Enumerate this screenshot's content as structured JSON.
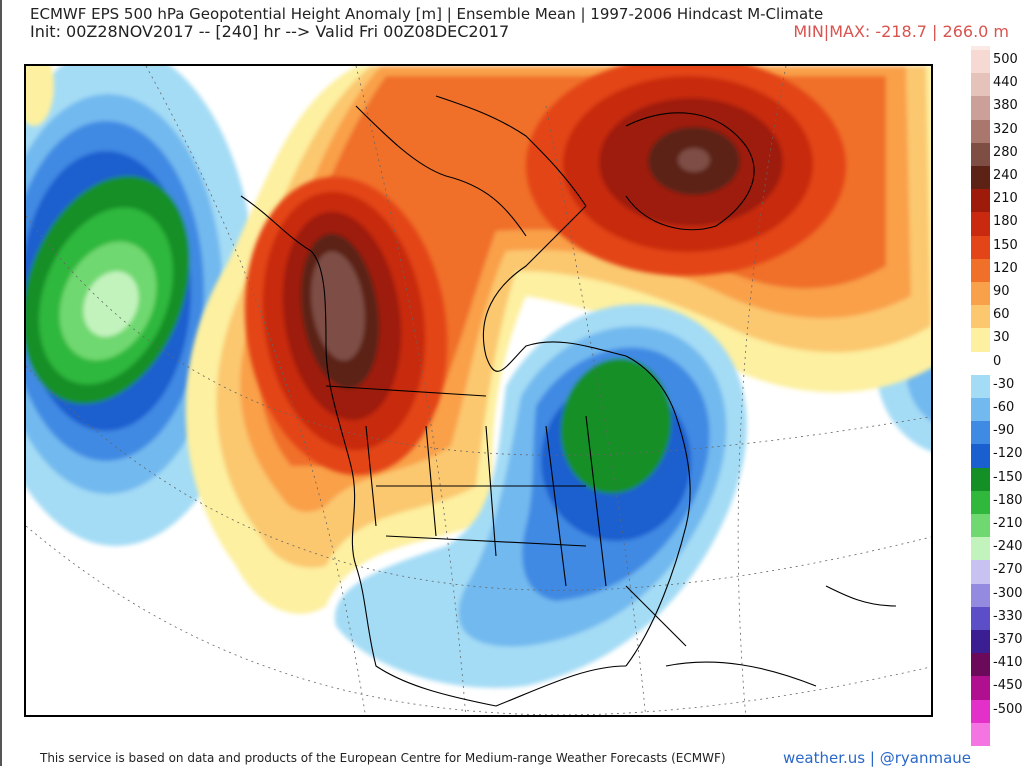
{
  "header": {
    "title": "ECMWF EPS 500 hPa Geopotential Height Anomaly [m] | Ensemble Mean | 1997-2006 Hindcast M-Climate",
    "init_line": "Init: 00Z28NOV2017 -- [240] hr --> Valid Fri 00Z08DEC2017",
    "minmax": "MIN|MAX: -218.7 | 266.0 m"
  },
  "legend": {
    "top_color": "#fbe9e6",
    "items": [
      {
        "label": "500",
        "color": "#f6d9d3"
      },
      {
        "label": "440",
        "color": "#e5c2ba"
      },
      {
        "label": "380",
        "color": "#cba098"
      },
      {
        "label": "320",
        "color": "#a9776d"
      },
      {
        "label": "280",
        "color": "#7e4e45"
      },
      {
        "label": "240",
        "color": "#5c2216"
      },
      {
        "label": "210",
        "color": "#9e1a0b"
      },
      {
        "label": "180",
        "color": "#c8290f"
      },
      {
        "label": "150",
        "color": "#e34418"
      },
      {
        "label": "120",
        "color": "#f0702a"
      },
      {
        "label": "90",
        "color": "#f9a04a"
      },
      {
        "label": "60",
        "color": "#fbc86f"
      },
      {
        "label": "30",
        "color": "#fdf0a0"
      },
      {
        "label": "0",
        "color": "#ffffff"
      },
      {
        "label": "-30",
        "color": "#a4dcf5"
      },
      {
        "label": "-60",
        "color": "#72b9ef"
      },
      {
        "label": "-90",
        "color": "#3f8ae3"
      },
      {
        "label": "-120",
        "color": "#1a5fcf"
      },
      {
        "label": "-150",
        "color": "#138f26"
      },
      {
        "label": "-180",
        "color": "#2fb83c"
      },
      {
        "label": "-210",
        "color": "#6fd870"
      },
      {
        "label": "-240",
        "color": "#c3f3bd"
      },
      {
        "label": "-270",
        "color": "#c7c2f2"
      },
      {
        "label": "-300",
        "color": "#948ae0"
      },
      {
        "label": "-330",
        "color": "#5c4ec6"
      },
      {
        "label": "-370",
        "color": "#3a1e92"
      },
      {
        "label": "-410",
        "color": "#6b0a5a"
      },
      {
        "label": "-450",
        "color": "#b01090"
      },
      {
        "label": "-500",
        "color": "#e230c8"
      },
      {
        "label": "",
        "color": "#f475e1"
      }
    ]
  },
  "footer": {
    "disclaimer": "This service is based on data and products of the European Centre for Medium-range Weather Forecasts (ECMWF)",
    "credit": "weather.us | @ryanmaue"
  }
}
